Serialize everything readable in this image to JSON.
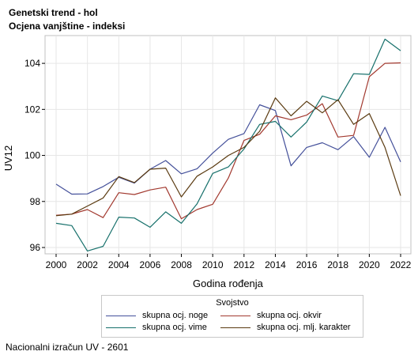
{
  "titles": {
    "line1": "Genetski trend - hol",
    "line2": "Ocjena vanjštine - indeksi"
  },
  "footnote": "Nacionalni izračun UV - 2601",
  "chart_data": {
    "type": "line",
    "title": "Genetski trend - hol",
    "subtitle": "Ocjena vanjštine - indeksi",
    "xlabel": "Godina rođenja",
    "ylabel": "UV12",
    "xlim": [
      2000,
      2022
    ],
    "ylim": [
      96,
      105.5
    ],
    "x_ticks": [
      2000,
      2002,
      2004,
      2006,
      2008,
      2010,
      2012,
      2014,
      2016,
      2018,
      2020,
      2022
    ],
    "y_ticks": [
      96,
      98,
      100,
      102,
      104
    ],
    "grid": true,
    "legend_title": "Svojstvo",
    "legend_position": "bottom",
    "x": [
      2000,
      2001,
      2002,
      2003,
      2004,
      2005,
      2006,
      2007,
      2008,
      2009,
      2010,
      2011,
      2012,
      2013,
      2014,
      2015,
      2016,
      2017,
      2018,
      2019,
      2020,
      2021,
      2022
    ],
    "series": [
      {
        "name": "skupna ocj. noge",
        "color": "#44509a",
        "values": [
          98.75,
          98.32,
          98.33,
          98.65,
          99.05,
          98.8,
          99.4,
          99.78,
          99.2,
          99.42,
          100.1,
          100.7,
          100.95,
          102.2,
          101.95,
          99.55,
          100.35,
          100.55,
          100.25,
          100.82,
          99.92,
          101.22,
          99.72
        ]
      },
      {
        "name": "skupna ocj. okvir",
        "color": "#a2392f",
        "values": [
          97.4,
          97.45,
          97.65,
          97.3,
          98.38,
          98.3,
          98.5,
          98.62,
          97.25,
          97.65,
          97.88,
          99.02,
          100.65,
          100.92,
          101.72,
          101.55,
          101.75,
          102.25,
          100.8,
          100.87,
          103.42,
          104.0,
          104.02
        ]
      },
      {
        "name": "skupna ocj. vime",
        "color": "#16706b",
        "values": [
          97.05,
          96.95,
          95.85,
          96.05,
          97.32,
          97.28,
          96.88,
          97.55,
          97.05,
          97.9,
          99.22,
          99.5,
          100.28,
          101.35,
          101.48,
          100.8,
          101.45,
          102.58,
          102.38,
          103.55,
          103.52,
          105.05,
          104.55
        ]
      },
      {
        "name": "skupna ocj. mlj. karakter",
        "color": "#5a3a10",
        "values": [
          97.38,
          97.45,
          97.8,
          98.15,
          99.08,
          98.82,
          99.4,
          99.45,
          98.2,
          99.1,
          99.5,
          100.0,
          100.35,
          101.05,
          102.5,
          101.72,
          102.35,
          101.85,
          102.42,
          101.35,
          101.82,
          100.35,
          98.25
        ]
      }
    ]
  }
}
